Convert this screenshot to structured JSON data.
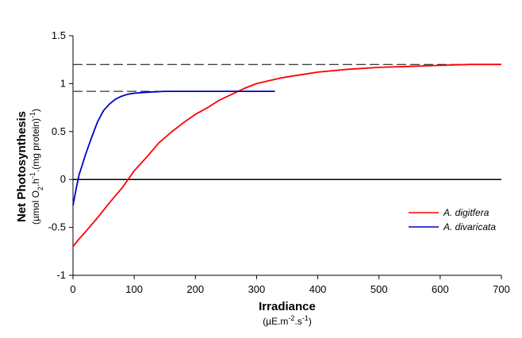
{
  "chart_data": {
    "type": "line",
    "title": "",
    "xlabel": "Irradiance",
    "xlabel_units": {
      "prefix": "(µE.m",
      "sup1": "-2",
      "mid": ".s",
      "sup2": "-1",
      "suffix": ")"
    },
    "ylabel": "Net Photosynthesis",
    "ylabel_units": {
      "p1": "(µmol O",
      "sub": "2",
      "p2": ".h",
      "sup1": "-1",
      "p3": ".(mg protein)",
      "sup2": "-1",
      "p4": ")"
    },
    "xlim": [
      0,
      700
    ],
    "ylim": [
      -1,
      1.5
    ],
    "x_ticks": [
      0,
      100,
      200,
      300,
      400,
      500,
      600,
      700
    ],
    "y_ticks": [
      -1,
      -0.5,
      0,
      0.5,
      1,
      1.5
    ],
    "x_tick_labels": [
      "0",
      "100",
      "200",
      "300",
      "400",
      "500",
      "600",
      "700"
    ],
    "y_tick_labels": [
      "-1",
      "-0.5",
      "0",
      "0.5",
      "1",
      "1.5"
    ],
    "grid": false,
    "legend_position": "right",
    "reference_lines": [
      {
        "y": 1.2,
        "x_range": [
          0,
          700
        ],
        "style": "dashed",
        "color": "#000000"
      },
      {
        "y": 0.92,
        "x_range": [
          0,
          330
        ],
        "style": "dashed",
        "color": "#000000"
      },
      {
        "y": 0,
        "x_range": [
          0,
          700
        ],
        "style": "solid",
        "color": "#000000"
      }
    ],
    "series": [
      {
        "name": "A. digitfera",
        "color": "#ff0000",
        "x": [
          0,
          10,
          20,
          40,
          60,
          80,
          100,
          120,
          140,
          160,
          180,
          200,
          220,
          240,
          260,
          280,
          300,
          320,
          340,
          360,
          380,
          400,
          450,
          500,
          550,
          600,
          650,
          700
        ],
        "y": [
          -0.7,
          -0.62,
          -0.55,
          -0.4,
          -0.24,
          -0.09,
          0.09,
          0.23,
          0.38,
          0.49,
          0.59,
          0.68,
          0.75,
          0.83,
          0.89,
          0.95,
          1.0,
          1.03,
          1.06,
          1.08,
          1.1,
          1.12,
          1.15,
          1.17,
          1.18,
          1.19,
          1.2,
          1.2
        ]
      },
      {
        "name": "A. divaricata",
        "color": "#0000c8",
        "x": [
          0,
          5,
          10,
          15,
          20,
          30,
          40,
          50,
          60,
          70,
          80,
          90,
          100,
          120,
          150,
          200,
          250,
          300,
          330
        ],
        "y": [
          -0.27,
          -0.1,
          0.05,
          0.15,
          0.25,
          0.43,
          0.6,
          0.72,
          0.79,
          0.84,
          0.87,
          0.89,
          0.9,
          0.91,
          0.92,
          0.92,
          0.92,
          0.92,
          0.92
        ]
      }
    ]
  }
}
